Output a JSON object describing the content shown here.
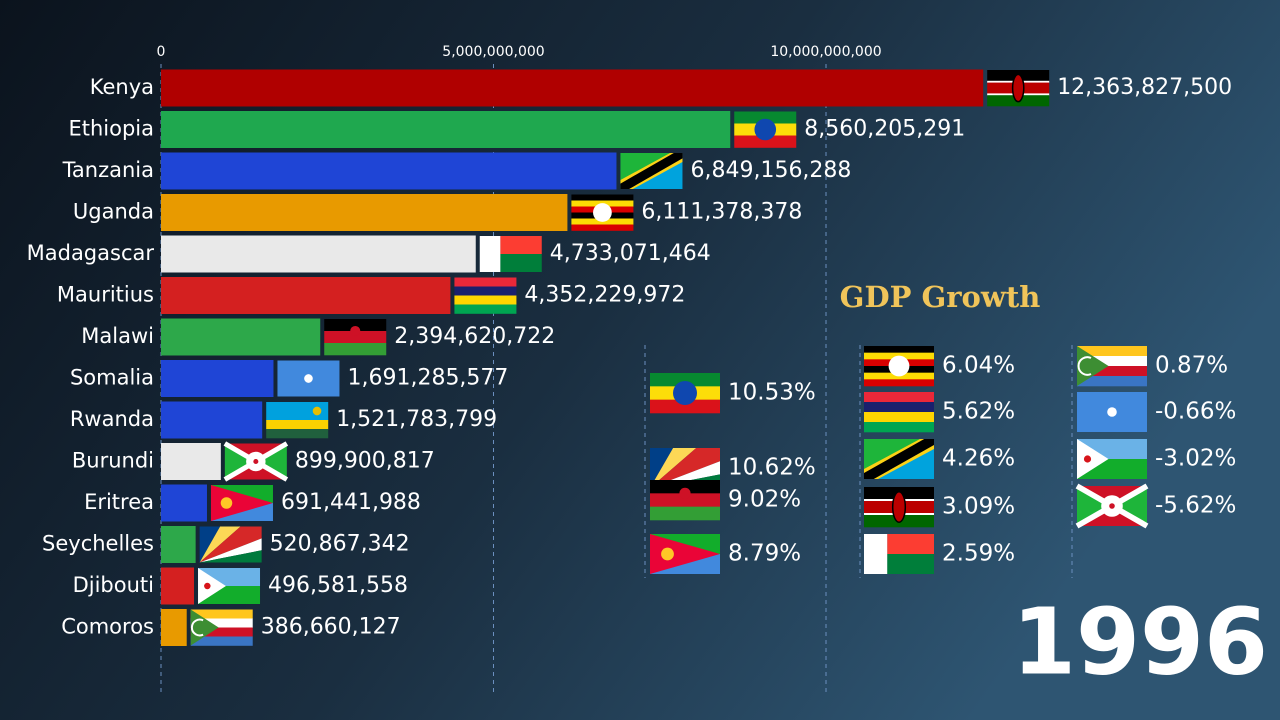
{
  "chart_data": {
    "type": "bar",
    "orientation": "horizontal",
    "categories": [
      "Kenya",
      "Ethiopia",
      "Tanzania",
      "Uganda",
      "Madagascar",
      "Mauritius",
      "Malawi",
      "Somalia",
      "Rwanda",
      "Burundi",
      "Eritrea",
      "Seychelles",
      "Djibouti",
      "Comoros"
    ],
    "values": [
      12363827500,
      8560205291,
      6849156288,
      6111378378,
      4733071464,
      4352229972,
      2394620722,
      1691285577,
      1521783799,
      899900817,
      691441988,
      520867342,
      496581558,
      386660127
    ],
    "value_labels": [
      "12,363,827,500",
      "8,560,205,291",
      "6,849,156,288",
      "6,111,378,378",
      "4,733,071,464",
      "4,352,229,972",
      "2,394,620,722",
      "1,691,285,577",
      "1,521,783,799",
      "899,900,817",
      "691,441,988",
      "520,867,342",
      "496,581,558",
      "386,660,127"
    ],
    "colors": [
      "#b00000",
      "#1fa84f",
      "#1f45d6",
      "#e89a00",
      "#e9e9e9",
      "#d42020",
      "#2da84a",
      "#1f45d6",
      "#1f45d6",
      "#e9e9e9",
      "#1f45d6",
      "#2da84a",
      "#d42020",
      "#e89a00"
    ],
    "xlim": [
      0,
      15000000000
    ],
    "xticks": [
      0,
      {
        "value": 5000000000,
        "label": "5,000,000,000"
      },
      {
        "value": 10000000000,
        "label": "10,000,000,000"
      }
    ],
    "grid": true
  },
  "growth": {
    "title": "GDP Growth",
    "labels": [
      "10.53%",
      "10.62%",
      "9.02%",
      "8.79%",
      "6.04%",
      "5.62%",
      "4.26%",
      "3.09%",
      "2.59%",
      "0.87%",
      "-0.66%",
      "-3.02%",
      "-5.62%"
    ]
  },
  "year": "1996"
}
